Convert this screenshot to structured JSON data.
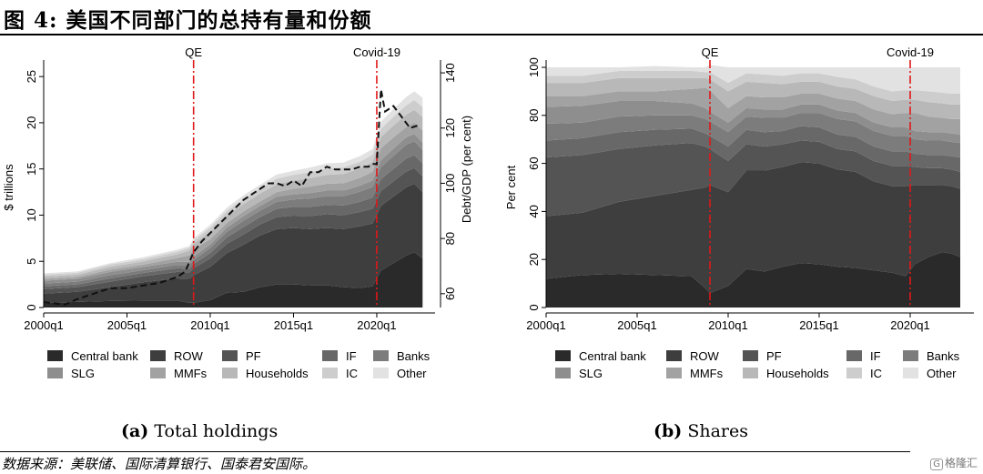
{
  "figure": {
    "title": "图 4:  美国不同部门的总持有量和份额",
    "source": "数据来源：美联储、国际清算银行、国泰君安国际。",
    "watermark": "格隆汇"
  },
  "colors": {
    "Central bank": "#2a2a2a",
    "ROW": "#3e3e3e",
    "PF": "#545454",
    "IF": "#686868",
    "Banks": "#7c7c7c",
    "SLG": "#8e8e8e",
    "MMFs": "#a2a2a2",
    "Households": "#b8b8b8",
    "IC": "#cdcdcd",
    "Other": "#e2e2e2"
  },
  "chart_data": [
    {
      "id": "panel-a",
      "type": "area",
      "stacked": true,
      "caption_tag": "(a)",
      "caption_text": "Total holdings",
      "ylabel": "$ trillions",
      "y2label": "Debt/GDP (per cent)",
      "xlim": [
        2000.0,
        2023.5
      ],
      "ylim": [
        0,
        26
      ],
      "y2lim": [
        55,
        142
      ],
      "xticks": [
        2000,
        2005,
        2010,
        2015,
        2020
      ],
      "xticklabels": [
        "2000q1",
        "2005q1",
        "2010q1",
        "2015q1",
        "2020q1"
      ],
      "yticks": [
        0,
        5,
        10,
        15,
        20,
        25
      ],
      "y2ticks": [
        60,
        80,
        100,
        120,
        140
      ],
      "vlines": [
        {
          "x": 2009.0,
          "label": "QE"
        },
        {
          "x": 2020.0,
          "label": "Covid-19"
        }
      ],
      "x": [
        2000.0,
        2002.0,
        2004.0,
        2006.0,
        2008.0,
        2008.75,
        2009.0,
        2010.0,
        2011.0,
        2012.0,
        2013.0,
        2014.0,
        2015.0,
        2016.0,
        2017.0,
        2018.0,
        2019.0,
        2019.75,
        2020.25,
        2021.0,
        2021.75,
        2022.25,
        2022.75
      ],
      "series": [
        {
          "name": "Central bank",
          "values": [
            0.5,
            0.6,
            0.7,
            0.75,
            0.75,
            0.5,
            0.5,
            0.8,
            1.6,
            1.7,
            2.2,
            2.5,
            2.5,
            2.4,
            2.4,
            2.2,
            2.1,
            2.3,
            4.0,
            4.8,
            5.6,
            6.0,
            5.3
          ]
        },
        {
          "name": "ROW",
          "values": [
            1.0,
            1.1,
            1.5,
            2.0,
            2.4,
            2.6,
            3.0,
            3.6,
            4.3,
            5.1,
            5.6,
            6.0,
            6.1,
            6.1,
            6.2,
            6.3,
            6.7,
            6.8,
            7.0,
            7.2,
            7.4,
            7.4,
            7.2
          ]
        },
        {
          "name": "PF",
          "values": [
            0.5,
            0.5,
            0.6,
            0.65,
            0.7,
            0.7,
            0.75,
            0.9,
            1.0,
            1.1,
            1.2,
            1.3,
            1.35,
            1.4,
            1.5,
            1.5,
            1.55,
            1.6,
            1.6,
            1.65,
            1.7,
            1.7,
            1.7
          ]
        },
        {
          "name": "IF",
          "values": [
            0.3,
            0.3,
            0.35,
            0.35,
            0.4,
            0.4,
            0.45,
            0.6,
            0.7,
            0.8,
            0.8,
            0.9,
            0.95,
            1.0,
            1.0,
            1.05,
            1.1,
            1.2,
            1.3,
            1.35,
            1.4,
            1.4,
            1.4
          ]
        },
        {
          "name": "Banks",
          "values": [
            0.3,
            0.3,
            0.35,
            0.3,
            0.35,
            0.4,
            0.45,
            0.55,
            0.6,
            0.7,
            0.7,
            0.75,
            0.8,
            0.9,
            0.95,
            1.0,
            1.1,
            1.15,
            1.3,
            1.4,
            1.5,
            1.5,
            1.45
          ]
        },
        {
          "name": "SLG",
          "values": [
            0.3,
            0.3,
            0.35,
            0.35,
            0.35,
            0.35,
            0.35,
            0.4,
            0.45,
            0.5,
            0.5,
            0.55,
            0.55,
            0.6,
            0.6,
            0.6,
            0.65,
            0.7,
            0.75,
            0.8,
            0.8,
            0.8,
            0.8
          ]
        },
        {
          "name": "MMFs",
          "values": [
            0.2,
            0.2,
            0.25,
            0.25,
            0.4,
            0.7,
            0.8,
            0.55,
            0.5,
            0.5,
            0.5,
            0.5,
            0.6,
            0.7,
            0.75,
            0.8,
            0.85,
            0.95,
            1.3,
            1.2,
            1.1,
            1.2,
            1.3
          ]
        },
        {
          "name": "Households",
          "values": [
            0.25,
            0.25,
            0.3,
            0.35,
            0.4,
            0.5,
            0.6,
            0.8,
            0.8,
            0.8,
            0.85,
            0.85,
            0.9,
            0.9,
            0.95,
            1.0,
            1.0,
            1.05,
            1.2,
            1.3,
            1.35,
            1.4,
            1.45
          ]
        },
        {
          "name": "IC",
          "values": [
            0.2,
            0.2,
            0.25,
            0.25,
            0.3,
            0.3,
            0.35,
            0.45,
            0.5,
            0.55,
            0.55,
            0.6,
            0.6,
            0.65,
            0.7,
            0.7,
            0.75,
            0.8,
            0.9,
            0.95,
            1.0,
            1.05,
            1.1
          ]
        },
        {
          "name": "Other",
          "values": [
            0.15,
            0.15,
            0.15,
            0.2,
            0.2,
            0.2,
            0.25,
            0.3,
            0.35,
            0.4,
            0.4,
            0.45,
            0.45,
            0.5,
            0.55,
            0.55,
            0.6,
            0.6,
            0.75,
            0.85,
            0.9,
            0.95,
            1.0
          ]
        }
      ],
      "line_series": {
        "name": "Debt/GDP",
        "axis": "right",
        "style": "dashed",
        "x": [
          2000.0,
          2001.25,
          2002.0,
          2003.0,
          2004.0,
          2005.0,
          2006.0,
          2007.0,
          2008.0,
          2008.5,
          2009.0,
          2009.5,
          2010.0,
          2010.5,
          2011.0,
          2011.5,
          2012.0,
          2012.5,
          2013.0,
          2013.5,
          2014.0,
          2014.5,
          2015.0,
          2015.5,
          2016.0,
          2016.5,
          2017.0,
          2017.5,
          2018.0,
          2018.5,
          2019.0,
          2019.5,
          2019.75,
          2020.0,
          2020.25,
          2020.5,
          2021.0,
          2021.5,
          2022.0,
          2022.5
        ],
        "values": [
          57,
          56,
          58,
          60,
          62,
          62,
          63,
          64,
          66,
          68,
          75,
          79,
          82,
          85,
          88,
          91,
          94,
          96,
          98,
          100,
          100,
          99,
          101,
          99,
          104,
          104,
          106,
          105,
          105,
          105,
          106,
          106,
          107,
          107,
          134,
          126,
          128,
          124,
          120,
          121
        ]
      },
      "legend": [
        "Central bank",
        "ROW",
        "PF",
        "IF",
        "Banks",
        "SLG",
        "MMFs",
        "Households",
        "IC",
        "Other"
      ],
      "legend_position": "bottom"
    },
    {
      "id": "panel-b",
      "type": "area",
      "stacked": true,
      "caption_tag": "(b)",
      "caption_text": "Shares",
      "ylabel": "Per cent",
      "xlim": [
        2000.0,
        2023.5
      ],
      "ylim": [
        0,
        100
      ],
      "xticks": [
        2000,
        2005,
        2010,
        2015,
        2020
      ],
      "xticklabels": [
        "2000q1",
        "2005q1",
        "2010q1",
        "2015q1",
        "2020q1"
      ],
      "yticks": [
        0,
        20,
        40,
        60,
        80,
        100
      ],
      "vlines": [
        {
          "x": 2009.0,
          "label": "QE"
        },
        {
          "x": 2020.0,
          "label": "Covid-19"
        }
      ],
      "x": [
        2000.0,
        2002.0,
        2004.0,
        2006.0,
        2008.0,
        2008.75,
        2009.0,
        2010.0,
        2011.0,
        2012.0,
        2013.0,
        2014.0,
        2015.0,
        2016.0,
        2017.0,
        2018.0,
        2019.0,
        2019.75,
        2020.25,
        2021.0,
        2021.75,
        2022.25,
        2022.75
      ],
      "series": [
        {
          "name": "Central bank",
          "values": [
            12.0,
            13.5,
            14.0,
            13.5,
            13.0,
            8.0,
            6.0,
            9.0,
            16.0,
            15.0,
            17.0,
            18.5,
            18.0,
            17.0,
            16.5,
            15.5,
            14.5,
            13.0,
            18.0,
            21.0,
            23.0,
            22.5,
            21.0
          ]
        },
        {
          "name": "ROW",
          "values": [
            26.0,
            26.0,
            30.0,
            33.0,
            36.0,
            42.0,
            45.0,
            39.0,
            41.0,
            42.0,
            41.5,
            42.0,
            42.0,
            40.5,
            40.0,
            37.0,
            36.0,
            37.5,
            33.0,
            30.0,
            28.0,
            28.0,
            28.5
          ]
        },
        {
          "name": "PF",
          "values": [
            24.5,
            24.0,
            22.0,
            21.0,
            19.5,
            17.0,
            15.0,
            13.0,
            11.0,
            10.0,
            9.5,
            9.0,
            9.0,
            8.5,
            8.5,
            8.5,
            8.5,
            8.5,
            7.5,
            7.0,
            7.0,
            7.0,
            7.0
          ]
        },
        {
          "name": "IF",
          "values": [
            7.0,
            7.0,
            7.0,
            6.5,
            6.0,
            5.5,
            5.5,
            6.0,
            6.0,
            6.0,
            5.5,
            6.0,
            6.0,
            6.0,
            6.0,
            6.0,
            6.0,
            6.0,
            5.5,
            5.5,
            5.5,
            5.5,
            6.0
          ]
        },
        {
          "name": "Banks",
          "values": [
            7.0,
            6.5,
            6.5,
            6.0,
            5.5,
            6.0,
            6.0,
            6.0,
            5.5,
            6.0,
            5.5,
            5.5,
            6.0,
            6.5,
            6.5,
            6.5,
            6.5,
            6.5,
            6.0,
            6.0,
            6.0,
            6.0,
            6.0
          ]
        },
        {
          "name": "SLG",
          "values": [
            7.0,
            7.0,
            6.5,
            6.0,
            5.0,
            4.5,
            4.0,
            4.0,
            3.5,
            3.5,
            3.5,
            3.5,
            3.5,
            3.5,
            3.5,
            3.5,
            3.5,
            3.5,
            3.5,
            3.5,
            3.5,
            3.5,
            3.5
          ]
        },
        {
          "name": "MMFs",
          "values": [
            4.5,
            4.0,
            4.0,
            4.0,
            6.0,
            8.5,
            9.0,
            6.0,
            5.0,
            5.0,
            5.0,
            4.5,
            4.5,
            5.0,
            5.0,
            5.5,
            5.5,
            6.0,
            7.5,
            6.5,
            6.0,
            6.0,
            6.5
          ]
        },
        {
          "name": "Households",
          "values": [
            5.5,
            5.5,
            5.5,
            5.5,
            4.5,
            4.0,
            4.5,
            7.0,
            6.0,
            6.0,
            5.5,
            5.0,
            5.0,
            5.0,
            5.0,
            5.5,
            5.5,
            5.5,
            5.5,
            6.0,
            6.0,
            6.0,
            6.0
          ]
        },
        {
          "name": "IC",
          "values": [
            3.0,
            3.0,
            3.0,
            3.0,
            3.0,
            2.5,
            3.0,
            3.5,
            3.5,
            3.5,
            3.5,
            3.5,
            3.5,
            4.0,
            4.0,
            4.0,
            4.0,
            4.0,
            4.0,
            4.5,
            4.5,
            4.5,
            4.5
          ]
        },
        {
          "name": "Other",
          "values": [
            3.5,
            3.5,
            1.5,
            2.0,
            1.5,
            2.0,
            3.0,
            6.5,
            2.5,
            3.0,
            3.5,
            2.5,
            2.5,
            4.0,
            5.0,
            8.0,
            10.0,
            9.5,
            9.5,
            10.0,
            10.5,
            11.0,
            11.0
          ]
        }
      ],
      "legend": [
        "Central bank",
        "ROW",
        "PF",
        "IF",
        "Banks",
        "SLG",
        "MMFs",
        "Households",
        "IC",
        "Other"
      ],
      "legend_position": "bottom"
    }
  ]
}
